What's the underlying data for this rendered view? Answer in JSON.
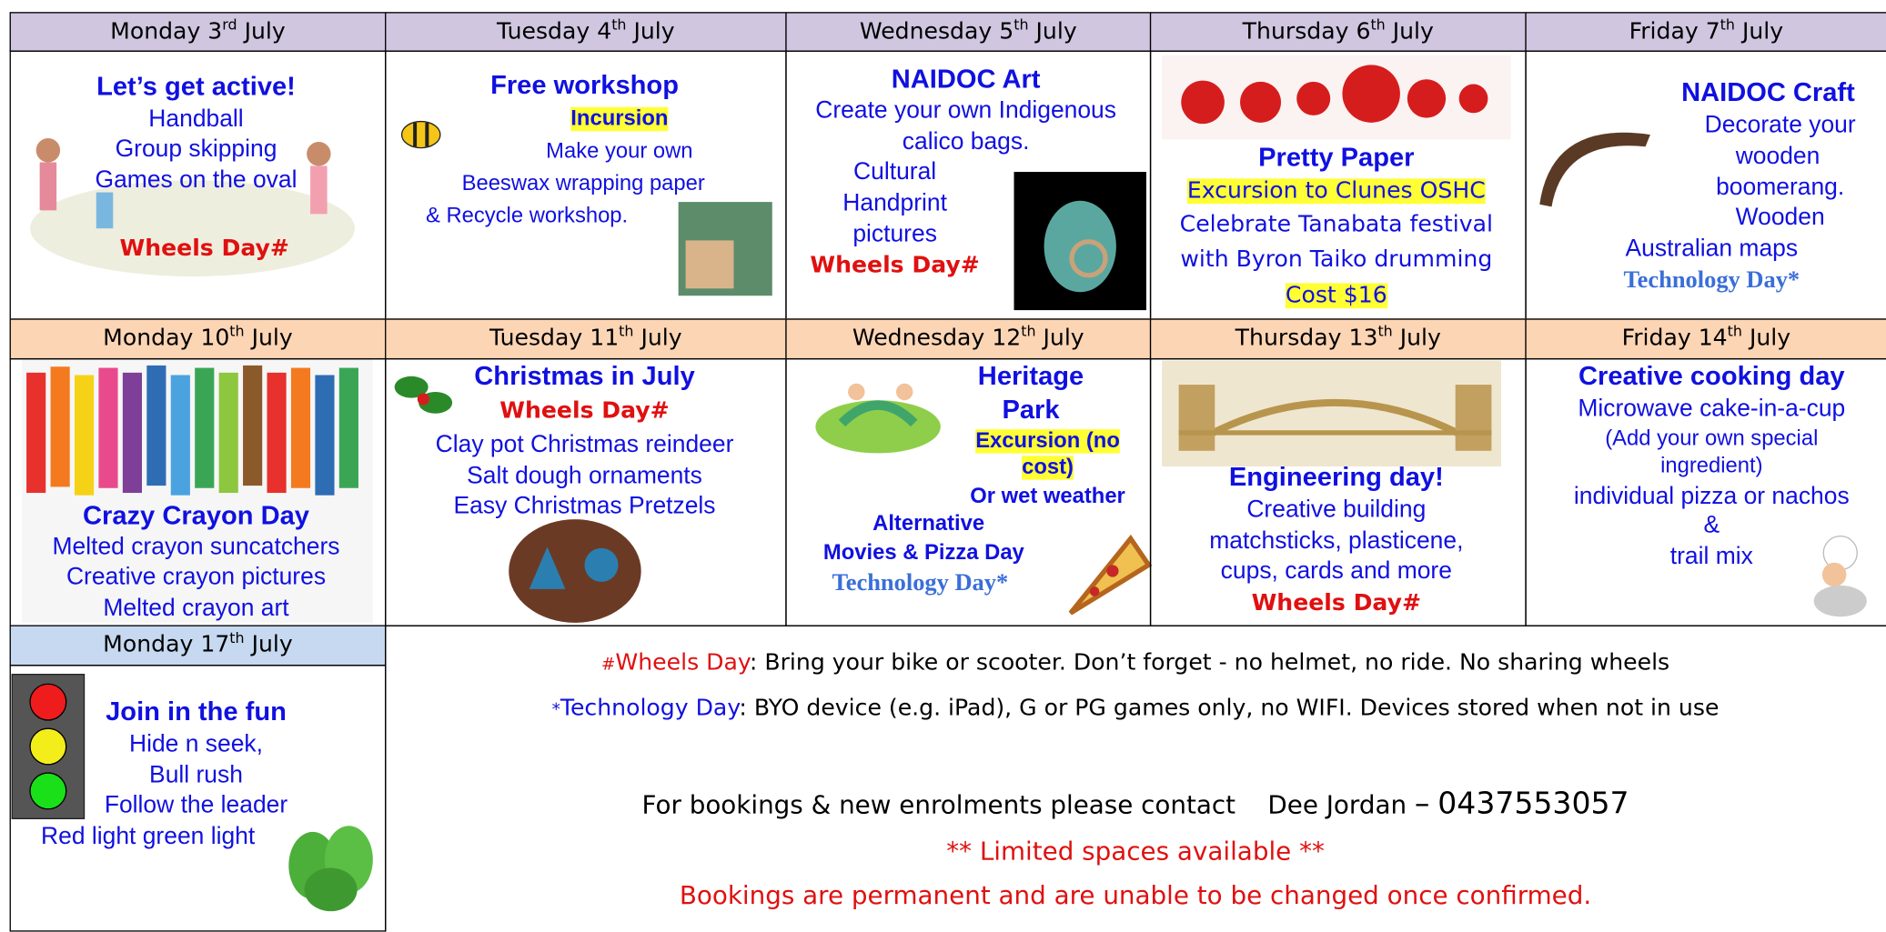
{
  "weeks": [
    {
      "days": [
        {
          "day": "Monday 3",
          "sup": "rd",
          "month": "July",
          "lines": [
            "Let’s get active!",
            "Handball",
            "Group skipping",
            "Games on the oval",
            "Wheels Day#"
          ]
        },
        {
          "day": "Tuesday 4",
          "sup": "th",
          "month": "July",
          "lines": [
            "Free workshop",
            "Incursion",
            "Make your own",
            "Beeswax wrapping paper",
            "& Recycle workshop."
          ]
        },
        {
          "day": "Wednesday 5",
          "sup": "th",
          "month": "July",
          "lines": [
            "NAIDOC Art",
            "Create your own Indigenous",
            "calico bags.",
            "Cultural",
            "Handprint",
            "pictures",
            "Wheels Day#"
          ]
        },
        {
          "day": "Thursday 6",
          "sup": "th",
          "month": "July",
          "lines": [
            "Pretty Paper",
            "Excursion to Clunes OSHC",
            "Celebrate Tanabata festival",
            "with Byron Taiko drumming",
            "Cost $16"
          ]
        },
        {
          "day": "Friday 7",
          "sup": "th",
          "month": "July",
          "lines": [
            "NAIDOC Craft",
            "Decorate your",
            "wooden",
            "boomerang.",
            "Wooden",
            "Australian maps",
            "Technology Day*"
          ]
        }
      ]
    },
    {
      "days": [
        {
          "day": "Monday 10",
          "sup": "th",
          "month": "July",
          "lines": [
            "Crazy Crayon Day",
            "Melted crayon suncatchers",
            "Creative crayon pictures",
            "Melted crayon art"
          ]
        },
        {
          "day": "Tuesday 11",
          "sup": "th",
          "month": "July",
          "lines": [
            "Christmas in July",
            "Wheels Day#",
            "Clay pot Christmas reindeer",
            "Salt dough ornaments",
            "Easy Christmas Pretzels"
          ]
        },
        {
          "day": "Wednesday 12",
          "sup": "th",
          "month": "July",
          "lines": [
            "Heritage",
            "Park",
            "Excursion (no",
            "cost)",
            "Or wet weather",
            "Alternative",
            "Movies & Pizza Day",
            "Technology Day*"
          ]
        },
        {
          "day": "Thursday 13",
          "sup": "th",
          "month": "July",
          "lines": [
            "Engineering day!",
            "Creative building",
            "matchsticks, plasticene,",
            "cups, cards and more",
            "Wheels Day#"
          ]
        },
        {
          "day": "Friday 14",
          "sup": "th",
          "month": "July",
          "lines": [
            "Creative cooking day",
            "Microwave cake-in-a-cup",
            "(Add your own special",
            "ingredient)",
            "individual pizza or nachos",
            "&",
            "trail mix"
          ]
        }
      ]
    },
    {
      "days": [
        {
          "day": "Monday 17",
          "sup": "th",
          "month": "July",
          "lines": [
            "Join in the fun",
            "Hide n seek,",
            "Bull rush",
            "Follow the leader",
            "Red light green light"
          ]
        }
      ]
    }
  ],
  "notes": {
    "wheels": {
      "mark": "#",
      "label": "Wheels Day",
      "text": ": Bring your bike or scooter. Don’t forget - no helmet, no ride. No sharing wheels"
    },
    "tech": {
      "mark": "*",
      "label": "Technology Day",
      "text": ": BYO device (e.g. iPad), G or PG games only, no WIFI. Devices stored when not in use"
    },
    "contact": {
      "text": "For bookings & new enrolments please contact",
      "name": "Dee Jordan",
      "dash": "–",
      "phone": "0437553057"
    },
    "limited": "** Limited spaces available **",
    "permanent": "Bookings are permanent and are unable to be changed once confirmed."
  }
}
